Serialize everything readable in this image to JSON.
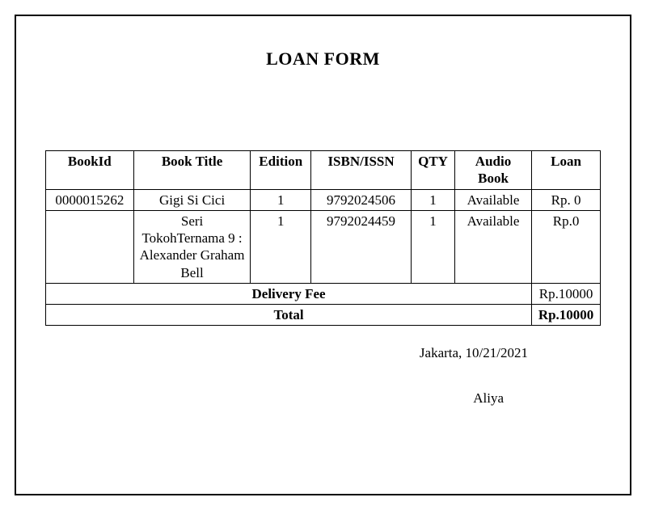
{
  "title": "LOAN FORM",
  "columns": {
    "bookId": "BookId",
    "bookTitle": "Book Title",
    "edition": "Edition",
    "isbn": "ISBN/ISSN",
    "qty": "QTY",
    "audioBook": "Audio Book",
    "loan": "Loan"
  },
  "rows": [
    {
      "bookId": "0000015262",
      "bookTitle": "Gigi Si Cici",
      "edition": "1",
      "isbn": "9792024506",
      "qty": "1",
      "audioBook": "Available",
      "loan": "Rp. 0"
    },
    {
      "bookId": "",
      "bookTitle": "Seri TokohTernama 9 : Alexander Graham Bell",
      "edition": "1",
      "isbn": "9792024459",
      "qty": "1",
      "audioBook": "Available",
      "loan": "Rp.0"
    }
  ],
  "deliveryFee": {
    "label": "Delivery Fee",
    "value": "Rp.10000"
  },
  "total": {
    "label": "Total",
    "value": "Rp.10000"
  },
  "signature": {
    "placeDate": "Jakarta, 10/21/2021",
    "name": "Aliya"
  },
  "style": {
    "pageBorderColor": "#000000",
    "tableBorderColor": "#000000",
    "backgroundColor": "#ffffff",
    "textColor": "#000000",
    "titleFontSize": 22,
    "bodyFontSize": 17,
    "fontFamily": "Times New Roman"
  }
}
